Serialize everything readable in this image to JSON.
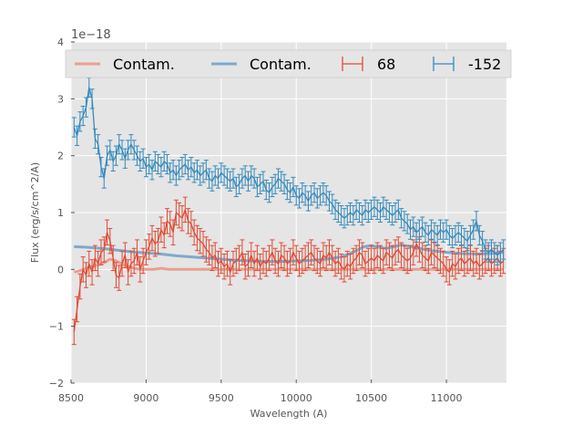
{
  "chart_data": {
    "type": "line",
    "title": "",
    "xlabel": "Wavelength (A)",
    "ylabel": "Flux (erg/s/cm^2/A)",
    "offset_label": "1e−18",
    "xlim": [
      8500,
      11400
    ],
    "ylim": [
      -2,
      4
    ],
    "x_ticks": [
      8500,
      9000,
      9500,
      10000,
      10500,
      11000
    ],
    "y_ticks": [
      -2,
      -1,
      0,
      1,
      2,
      3,
      4
    ],
    "x_tick_labels": [
      "8500",
      "9000",
      "9500",
      "10000",
      "10500",
      "11000"
    ],
    "y_tick_labels": [
      "−2",
      "−1",
      "0",
      "1",
      "2",
      "3",
      "4"
    ],
    "grid": true,
    "legend_position": "top",
    "legend": [
      {
        "label": "Contam.",
        "kind": "line",
        "color": "#e8a090"
      },
      {
        "label": "Contam.",
        "kind": "line",
        "color": "#7fa9cc"
      },
      {
        "label": "68",
        "kind": "errorbar",
        "color": "#e24a33"
      },
      {
        "label": "-152",
        "kind": "errorbar",
        "color": "#348abd"
      }
    ],
    "series": [
      {
        "name": "Contam. (68)",
        "kind": "line",
        "color": "#e8a090",
        "x": [
          8520,
          8560,
          8600,
          8640,
          8680,
          8720,
          8760,
          8800,
          8840,
          8880,
          8920,
          8960,
          9000,
          9050,
          9100,
          9150,
          9200,
          9300,
          9400,
          9500,
          9600,
          9700,
          9800,
          9900,
          10000,
          10200,
          10400,
          10600,
          10800,
          11000,
          11200,
          11380
        ],
        "y": [
          -0.05,
          -0.02,
          0.02,
          0.05,
          0.08,
          0.12,
          0.18,
          0.15,
          0.1,
          0.05,
          0.02,
          0.0,
          0.0,
          0.0,
          0.02,
          0.0,
          0.0,
          0.0,
          0.0,
          0.0,
          0.0,
          0.0,
          0.0,
          0.0,
          0.0,
          0.0,
          0.0,
          0.0,
          0.0,
          0.0,
          0.0,
          0.0
        ]
      },
      {
        "name": "Contam. (-152)",
        "kind": "line",
        "color": "#7fa9cc",
        "x": [
          8520,
          8600,
          8700,
          8800,
          8900,
          9000,
          9100,
          9200,
          9300,
          9400,
          9500,
          9600,
          9700,
          9800,
          9900,
          10000,
          10100,
          10200,
          10300,
          10350,
          10400,
          10450,
          10500,
          10550,
          10600,
          10650,
          10700,
          10800,
          10900,
          11000,
          11100,
          11200,
          11300,
          11380
        ],
        "y": [
          0.4,
          0.39,
          0.37,
          0.34,
          0.31,
          0.29,
          0.27,
          0.24,
          0.22,
          0.2,
          0.18,
          0.16,
          0.15,
          0.14,
          0.14,
          0.15,
          0.16,
          0.18,
          0.22,
          0.27,
          0.33,
          0.4,
          0.42,
          0.39,
          0.37,
          0.4,
          0.43,
          0.38,
          0.33,
          0.3,
          0.28,
          0.27,
          0.28,
          0.3
        ]
      },
      {
        "name": "68",
        "kind": "errorbar",
        "color": "#e24a33",
        "err": 0.22,
        "x": [
          8520,
          8540,
          8560,
          8580,
          8600,
          8620,
          8640,
          8660,
          8680,
          8700,
          8720,
          8740,
          8760,
          8780,
          8800,
          8820,
          8840,
          8860,
          8880,
          8900,
          8920,
          8940,
          8960,
          8980,
          9000,
          9020,
          9040,
          9060,
          9080,
          9100,
          9120,
          9140,
          9160,
          9180,
          9200,
          9220,
          9240,
          9260,
          9280,
          9300,
          9320,
          9340,
          9360,
          9380,
          9400,
          9420,
          9440,
          9460,
          9480,
          9500,
          9520,
          9540,
          9560,
          9580,
          9600,
          9620,
          9640,
          9660,
          9680,
          9700,
          9720,
          9740,
          9760,
          9780,
          9800,
          9820,
          9840,
          9860,
          9880,
          9900,
          9920,
          9940,
          9960,
          9980,
          10000,
          10020,
          10040,
          10060,
          10080,
          10100,
          10120,
          10140,
          10160,
          10180,
          10200,
          10220,
          10240,
          10260,
          10280,
          10300,
          10320,
          10340,
          10360,
          10380,
          10400,
          10420,
          10440,
          10460,
          10480,
          10500,
          10520,
          10540,
          10560,
          10580,
          10600,
          10620,
          10640,
          10660,
          10680,
          10700,
          10720,
          10740,
          10760,
          10780,
          10800,
          10820,
          10840,
          10860,
          10880,
          10900,
          10920,
          10940,
          10960,
          10980,
          11000,
          11020,
          11040,
          11060,
          11080,
          11100,
          11120,
          11140,
          11160,
          11180,
          11200,
          11220,
          11240,
          11260,
          11280,
          11300,
          11320,
          11340,
          11360,
          11380
        ],
        "y": [
          -1.1,
          -0.7,
          -0.3,
          0.0,
          -0.1,
          0.1,
          -0.05,
          0.2,
          0.1,
          0.3,
          0.35,
          0.65,
          0.5,
          0.2,
          -0.1,
          -0.15,
          0.1,
          0.25,
          -0.05,
          0.1,
          0.15,
          0.3,
          0.0,
          0.15,
          0.3,
          0.4,
          0.55,
          0.45,
          0.5,
          0.7,
          0.6,
          0.85,
          0.8,
          0.65,
          1.0,
          0.95,
          0.9,
          1.05,
          0.85,
          0.8,
          0.65,
          0.55,
          0.5,
          0.45,
          0.35,
          0.3,
          0.2,
          0.25,
          0.1,
          0.15,
          0.05,
          0.1,
          -0.05,
          0.1,
          0.15,
          0.2,
          0.3,
          0.05,
          0.1,
          0.25,
          0.1,
          0.2,
          0.05,
          0.15,
          0.1,
          0.2,
          0.3,
          0.15,
          0.1,
          0.25,
          0.2,
          0.1,
          0.15,
          0.3,
          0.2,
          0.1,
          0.15,
          0.2,
          0.25,
          0.3,
          0.2,
          0.15,
          0.1,
          0.25,
          0.2,
          0.3,
          0.2,
          0.1,
          0.15,
          0.05,
          0.0,
          0.1,
          0.05,
          0.15,
          0.2,
          0.3,
          0.25,
          0.1,
          0.15,
          0.2,
          0.15,
          0.25,
          0.2,
          0.15,
          0.3,
          0.25,
          0.2,
          0.3,
          0.35,
          0.25,
          0.2,
          0.15,
          0.2,
          0.3,
          0.45,
          0.35,
          0.25,
          0.2,
          0.15,
          0.3,
          0.25,
          0.2,
          0.15,
          0.1,
          0.0,
          -0.05,
          0.1,
          0.05,
          0.15,
          0.2,
          0.1,
          0.15,
          0.2,
          0.1,
          0.15,
          0.05,
          0.1,
          0.15,
          0.2,
          0.1,
          0.15,
          0.2,
          0.1,
          0.15
        ]
      },
      {
        "name": "-152",
        "kind": "errorbar",
        "color": "#348abd",
        "err": 0.17,
        "x": [
          8520,
          8540,
          8560,
          8580,
          8600,
          8620,
          8640,
          8660,
          8680,
          8700,
          8720,
          8740,
          8760,
          8780,
          8800,
          8820,
          8840,
          8860,
          8880,
          8900,
          8920,
          8940,
          8960,
          8980,
          9000,
          9020,
          9040,
          9060,
          9080,
          9100,
          9120,
          9140,
          9160,
          9180,
          9200,
          9220,
          9240,
          9260,
          9280,
          9300,
          9320,
          9340,
          9360,
          9380,
          9400,
          9420,
          9440,
          9460,
          9480,
          9500,
          9520,
          9540,
          9560,
          9580,
          9600,
          9620,
          9640,
          9660,
          9680,
          9700,
          9720,
          9740,
          9760,
          9780,
          9800,
          9820,
          9840,
          9860,
          9880,
          9900,
          9920,
          9940,
          9960,
          9980,
          10000,
          10020,
          10040,
          10060,
          10080,
          10100,
          10120,
          10140,
          10160,
          10180,
          10200,
          10220,
          10240,
          10260,
          10280,
          10300,
          10320,
          10340,
          10360,
          10380,
          10400,
          10420,
          10440,
          10460,
          10480,
          10500,
          10520,
          10540,
          10560,
          10580,
          10600,
          10620,
          10640,
          10660,
          10680,
          10700,
          10720,
          10740,
          10760,
          10780,
          10800,
          10820,
          10840,
          10860,
          10880,
          10900,
          10920,
          10940,
          10960,
          10980,
          11000,
          11020,
          11040,
          11060,
          11080,
          11100,
          11120,
          11140,
          11160,
          11180,
          11200,
          11220,
          11240,
          11260,
          11280,
          11300,
          11320,
          11340,
          11360,
          11380
        ],
        "y": [
          2.5,
          2.35,
          2.6,
          2.7,
          2.85,
          3.2,
          3.0,
          2.3,
          2.2,
          1.8,
          1.6,
          2.0,
          2.1,
          1.9,
          2.0,
          2.2,
          2.1,
          1.95,
          2.1,
          2.2,
          2.1,
          2.0,
          1.9,
          1.95,
          1.8,
          1.85,
          1.75,
          1.9,
          1.85,
          1.8,
          1.9,
          1.85,
          1.7,
          1.75,
          1.65,
          1.75,
          1.8,
          1.85,
          1.75,
          1.8,
          1.7,
          1.75,
          1.65,
          1.7,
          1.75,
          1.6,
          1.55,
          1.65,
          1.6,
          1.7,
          1.65,
          1.6,
          1.55,
          1.6,
          1.45,
          1.5,
          1.6,
          1.65,
          1.55,
          1.65,
          1.6,
          1.45,
          1.5,
          1.55,
          1.4,
          1.35,
          1.45,
          1.5,
          1.6,
          1.55,
          1.5,
          1.4,
          1.35,
          1.45,
          1.3,
          1.25,
          1.35,
          1.3,
          1.2,
          1.3,
          1.35,
          1.25,
          1.3,
          1.35,
          1.3,
          1.2,
          1.15,
          1.05,
          1.0,
          0.95,
          0.9,
          0.95,
          1.0,
          0.95,
          1.05,
          1.0,
          0.95,
          1.05,
          1.0,
          1.05,
          1.1,
          1.05,
          1.0,
          1.1,
          1.05,
          1.0,
          0.95,
          1.0,
          1.05,
          0.9,
          0.85,
          0.8,
          0.7,
          0.75,
          0.65,
          0.7,
          0.75,
          0.65,
          0.6,
          0.7,
          0.65,
          0.6,
          0.7,
          0.65,
          0.7,
          0.6,
          0.55,
          0.6,
          0.65,
          0.6,
          0.55,
          0.5,
          0.6,
          0.7,
          0.85,
          0.6,
          0.5,
          0.35,
          0.3,
          0.35,
          0.3,
          0.25,
          0.3,
          0.35
        ]
      }
    ]
  }
}
